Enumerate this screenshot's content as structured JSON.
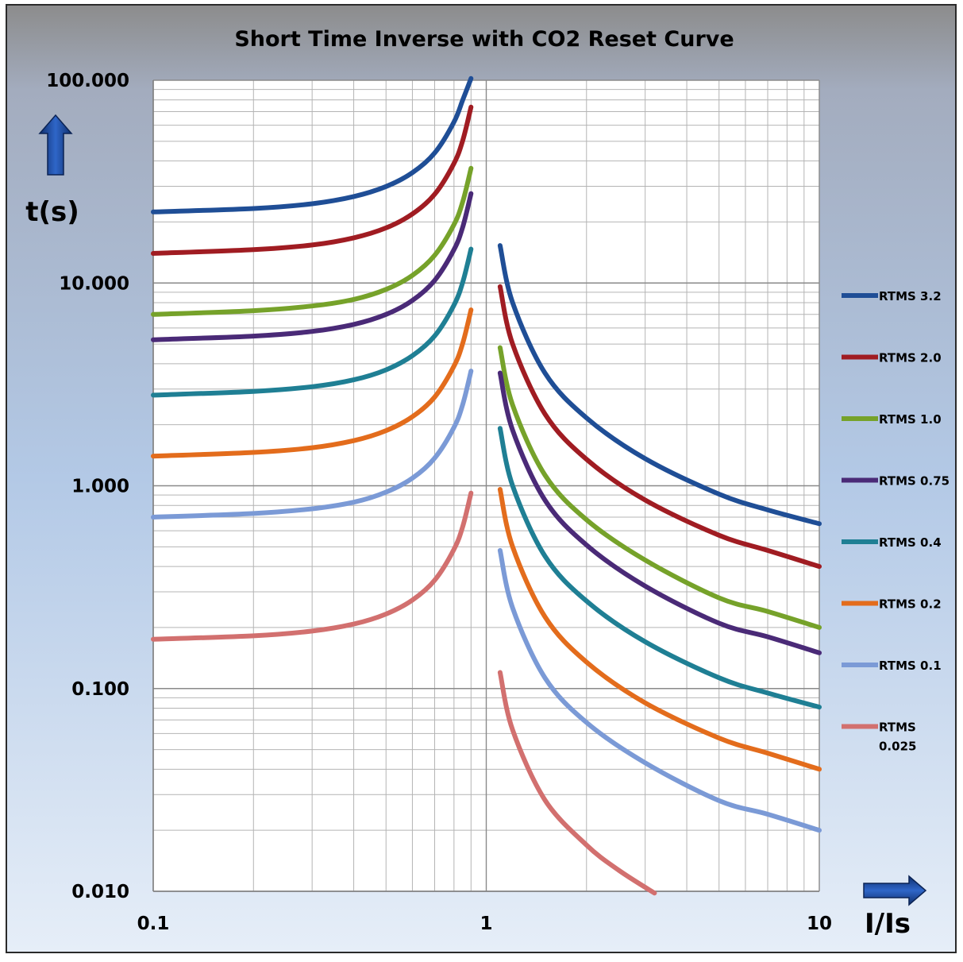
{
  "chart_data": {
    "type": "line",
    "title": "Short Time Inverse with CO2 Reset Curve",
    "xlabel": "I/Is",
    "ylabel": "t(s)",
    "xscale": "log",
    "yscale": "log",
    "xlim": [
      0.1,
      10
    ],
    "ylim": [
      0.01,
      100
    ],
    "x_ticks": [
      {
        "value": 0.1,
        "label": "0.1"
      },
      {
        "value": 1,
        "label": "1"
      },
      {
        "value": 10,
        "label": "10"
      }
    ],
    "y_ticks": [
      {
        "value": 100,
        "label": "100.000"
      },
      {
        "value": 10,
        "label": "10.000"
      },
      {
        "value": 1,
        "label": "1.000"
      },
      {
        "value": 0.1,
        "label": "0.100"
      },
      {
        "value": 0.01,
        "label": "0.010"
      }
    ],
    "grid": true,
    "legend_position": "right",
    "series": [
      {
        "name": "RTMS 3.2",
        "color": "#1f4e96",
        "reset_x": [
          0.1,
          0.2,
          0.3,
          0.4,
          0.5,
          0.6,
          0.7,
          0.8,
          0.85,
          0.9
        ],
        "reset_y": [
          22.4,
          23.3,
          24.6,
          26.7,
          29.9,
          35.0,
          43.8,
          62.2,
          80.0,
          102
        ],
        "trip_x": [
          1.1,
          1.2,
          1.5,
          2,
          3,
          5,
          7,
          10
        ],
        "trip_y": [
          15.3,
          8.0,
          3.6,
          2.16,
          1.36,
          0.91,
          0.76,
          0.65
        ]
      },
      {
        "name": "RTMS 2.0",
        "color": "#a01c22",
        "reset_x": [
          0.1,
          0.2,
          0.3,
          0.4,
          0.5,
          0.6,
          0.7,
          0.8,
          0.85,
          0.9
        ],
        "reset_y": [
          14.0,
          14.6,
          15.4,
          16.7,
          18.7,
          21.9,
          27.4,
          38.9,
          50.5,
          73.7
        ],
        "trip_x": [
          1.1,
          1.2,
          1.5,
          2,
          3,
          5,
          7,
          10
        ],
        "trip_y": [
          9.6,
          5.0,
          2.26,
          1.35,
          0.85,
          0.57,
          0.48,
          0.4
        ]
      },
      {
        "name": "RTMS 1.0",
        "color": "#76a22a",
        "reset_x": [
          0.1,
          0.2,
          0.3,
          0.4,
          0.5,
          0.6,
          0.7,
          0.8,
          0.85,
          0.9
        ],
        "reset_y": [
          7.0,
          7.3,
          7.7,
          8.3,
          9.3,
          10.9,
          13.7,
          19.4,
          25.2,
          36.8
        ],
        "trip_x": [
          1.1,
          1.2,
          1.5,
          2,
          3,
          5,
          7,
          10
        ],
        "trip_y": [
          4.8,
          2.5,
          1.13,
          0.68,
          0.43,
          0.28,
          0.24,
          0.2
        ]
      },
      {
        "name": "RTMS 0.75",
        "color": "#4a2a77",
        "reset_x": [
          0.1,
          0.2,
          0.3,
          0.4,
          0.5,
          0.6,
          0.7,
          0.8,
          0.85,
          0.9
        ],
        "reset_y": [
          5.25,
          5.47,
          5.77,
          6.25,
          7.0,
          8.2,
          10.3,
          14.6,
          18.9,
          27.6
        ],
        "trip_x": [
          1.1,
          1.2,
          1.5,
          2,
          3,
          5,
          7,
          10
        ],
        "trip_y": [
          3.6,
          1.88,
          0.85,
          0.51,
          0.32,
          0.21,
          0.18,
          0.15
        ]
      },
      {
        "name": "RTMS 0.4",
        "color": "#1f7f94",
        "reset_x": [
          0.1,
          0.2,
          0.3,
          0.4,
          0.5,
          0.6,
          0.7,
          0.8,
          0.85,
          0.9
        ],
        "reset_y": [
          2.8,
          2.92,
          3.08,
          3.33,
          3.73,
          4.38,
          5.48,
          7.78,
          10.1,
          14.7
        ],
        "trip_x": [
          1.1,
          1.2,
          1.5,
          2,
          3,
          5,
          7,
          10
        ],
        "trip_y": [
          1.92,
          1.0,
          0.45,
          0.27,
          0.17,
          0.113,
          0.095,
          0.081
        ]
      },
      {
        "name": "RTMS 0.2",
        "color": "#e36c1c",
        "reset_x": [
          0.1,
          0.2,
          0.3,
          0.4,
          0.5,
          0.6,
          0.7,
          0.8,
          0.85,
          0.9
        ],
        "reset_y": [
          1.4,
          1.46,
          1.54,
          1.67,
          1.87,
          2.19,
          2.74,
          3.89,
          5.05,
          7.37
        ],
        "trip_x": [
          1.1,
          1.2,
          1.5,
          2,
          3,
          5,
          7,
          10
        ],
        "trip_y": [
          0.96,
          0.5,
          0.226,
          0.135,
          0.085,
          0.057,
          0.048,
          0.04
        ]
      },
      {
        "name": "RTMS 0.1",
        "color": "#7b9ad6",
        "reset_x": [
          0.1,
          0.2,
          0.3,
          0.4,
          0.5,
          0.6,
          0.7,
          0.8,
          0.85,
          0.9
        ],
        "reset_y": [
          0.7,
          0.73,
          0.77,
          0.83,
          0.93,
          1.09,
          1.37,
          1.94,
          2.52,
          3.68
        ],
        "trip_x": [
          1.1,
          1.2,
          1.5,
          2,
          3,
          5,
          7,
          10
        ],
        "trip_y": [
          0.48,
          0.25,
          0.113,
          0.068,
          0.043,
          0.028,
          0.024,
          0.02
        ]
      },
      {
        "name": "RTMS 0.025",
        "color": "#d2706f",
        "reset_x": [
          0.1,
          0.2,
          0.3,
          0.4,
          0.5,
          0.6,
          0.7,
          0.8,
          0.85,
          0.9
        ],
        "reset_y": [
          0.175,
          0.182,
          0.192,
          0.208,
          0.233,
          0.273,
          0.342,
          0.486,
          0.63,
          0.92
        ],
        "trip_x": [
          1.1,
          1.2,
          1.5,
          2,
          2.5,
          3.2
        ],
        "trip_y": [
          0.12,
          0.0625,
          0.0282,
          0.0169,
          0.0127,
          0.0098
        ]
      }
    ]
  }
}
